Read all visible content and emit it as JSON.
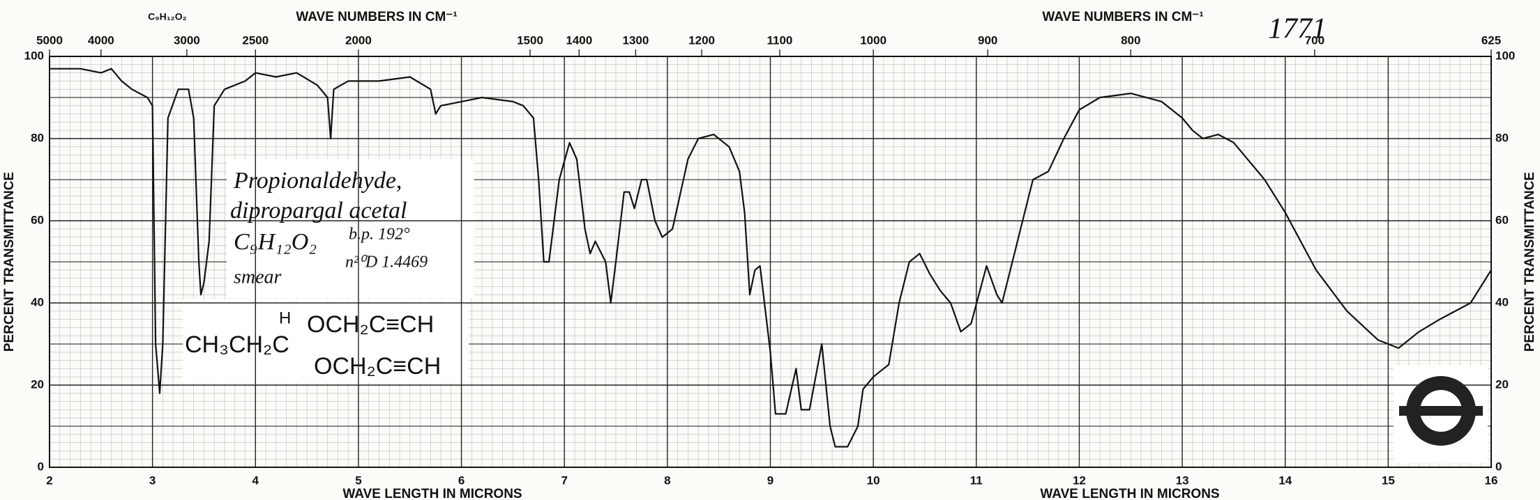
{
  "chart_data": {
    "type": "line",
    "title": "1771",
    "formula_label": "C₉H₁₂O₂",
    "top_axis_label": "WAVE NUMBERS IN CM⁻¹",
    "x_axis_label": "WAVE LENGTH IN MICRONS",
    "y_axis_label": "PERCENT TRANSMITTANCE",
    "annotations": [
      "Propionaldehyde,",
      "dipropargal acetal",
      "C₉H₁₂O₂",
      "b.p. 192°",
      "n²⁰D 1.4469",
      "smear"
    ],
    "structure": [
      "CH₃CH₂C",
      "H",
      "OCH₂C≡CH",
      "OCH₂C≡CH"
    ],
    "color": "#111111",
    "grid": true,
    "xlim": [
      2,
      16
    ],
    "xticks": [
      2,
      3,
      4,
      5,
      6,
      7,
      8,
      9,
      10,
      11,
      12,
      13,
      14,
      15,
      16
    ],
    "x2ticks": [
      5000,
      4000,
      3000,
      2500,
      2000,
      1500,
      1400,
      1300,
      1200,
      1100,
      1000,
      900,
      800,
      700,
      625
    ],
    "ylim": [
      0,
      100
    ],
    "yticks": [
      0,
      20,
      40,
      60,
      80,
      100
    ],
    "x": [
      2.0,
      2.3,
      2.5,
      2.6,
      2.7,
      2.8,
      2.95,
      3.0,
      3.03,
      3.07,
      3.1,
      3.15,
      3.25,
      3.35,
      3.4,
      3.45,
      3.47,
      3.5,
      3.55,
      3.6,
      3.7,
      3.9,
      4.0,
      4.2,
      4.4,
      4.6,
      4.7,
      4.73,
      4.76,
      4.9,
      5.2,
      5.5,
      5.7,
      5.75,
      5.8,
      6.0,
      6.2,
      6.5,
      6.6,
      6.7,
      6.75,
      6.8,
      6.85,
      6.95,
      7.05,
      7.12,
      7.2,
      7.25,
      7.3,
      7.4,
      7.45,
      7.5,
      7.58,
      7.63,
      7.68,
      7.75,
      7.8,
      7.88,
      7.95,
      8.05,
      8.2,
      8.3,
      8.45,
      8.6,
      8.7,
      8.75,
      8.8,
      8.85,
      8.9,
      9.0,
      9.05,
      9.15,
      9.25,
      9.3,
      9.38,
      9.5,
      9.58,
      9.63,
      9.75,
      9.85,
      9.9,
      10.0,
      10.15,
      10.25,
      10.35,
      10.45,
      10.55,
      10.65,
      10.75,
      10.85,
      10.95,
      11.1,
      11.2,
      11.25,
      11.35,
      11.45,
      11.55,
      11.7,
      11.85,
      12.0,
      12.2,
      12.5,
      12.8,
      13.0,
      13.1,
      13.2,
      13.35,
      13.5,
      13.8,
      14.0,
      14.3,
      14.6,
      14.9,
      15.1,
      15.2,
      15.3,
      15.5,
      15.8,
      16.0
    ],
    "values": [
      97,
      97,
      96,
      97,
      94,
      92,
      90,
      88,
      30,
      18,
      30,
      85,
      92,
      92,
      85,
      50,
      42,
      45,
      55,
      88,
      92,
      94,
      96,
      95,
      96,
      93,
      90,
      80,
      92,
      94,
      94,
      95,
      92,
      86,
      88,
      89,
      90,
      89,
      88,
      85,
      70,
      50,
      50,
      70,
      79,
      75,
      58,
      52,
      55,
      50,
      40,
      50,
      67,
      67,
      63,
      70,
      70,
      60,
      56,
      58,
      75,
      80,
      81,
      78,
      72,
      62,
      42,
      48,
      49,
      28,
      13,
      13,
      24,
      14,
      14,
      30,
      10,
      5,
      5,
      10,
      19,
      22,
      25,
      40,
      50,
      52,
      47,
      43,
      40,
      33,
      35,
      49,
      42,
      40,
      50,
      60,
      70,
      72,
      80,
      87,
      90,
      91,
      89,
      85,
      82,
      80,
      81,
      79,
      70,
      62,
      48,
      38,
      31,
      29,
      31,
      33,
      36,
      40,
      48
    ]
  }
}
